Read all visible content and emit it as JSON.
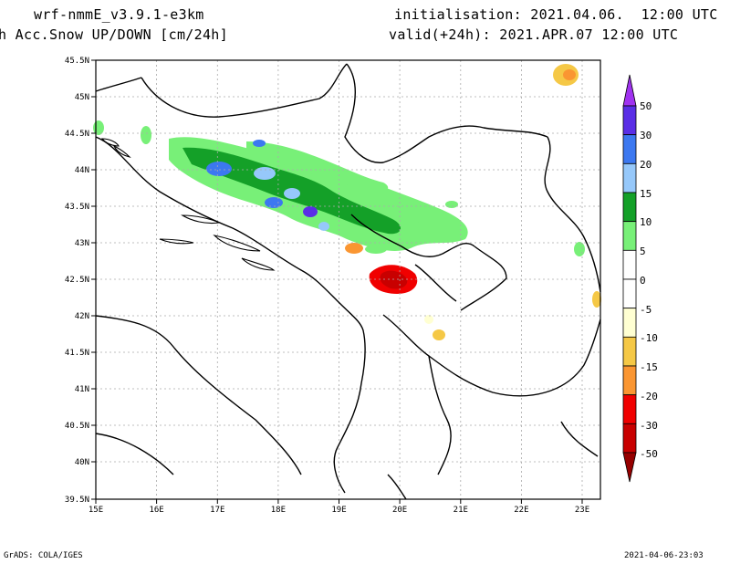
{
  "header": {
    "model": "wrf-nmmE_v3.9.1-e3km",
    "field": "h Acc.Snow UP/DOWN [cm/24h]",
    "init": "initialisation: 2021.04.06.  12:00 UTC",
    "valid": "valid(+24h): 2021.APR.07 12:00 UTC"
  },
  "map": {
    "lon_labels": [
      "15E",
      "16E",
      "17E",
      "18E",
      "19E",
      "20E",
      "21E",
      "22E",
      "23E"
    ],
    "lat_labels": [
      "45.5N",
      "45N",
      "44.5N",
      "44N",
      "43.5N",
      "43N",
      "42.5N",
      "42N",
      "41.5N",
      "41N",
      "40.5N",
      "40N",
      "39.5N"
    ],
    "lon_range": [
      15,
      23.3
    ],
    "lat_range": [
      39.5,
      45.5
    ]
  },
  "colorbar": {
    "labels": [
      "50",
      "30",
      "20",
      "15",
      "10",
      "5",
      "0",
      "-5",
      "-10",
      "-15",
      "-20",
      "-30",
      "-50"
    ],
    "colors": [
      "#5a2ee6",
      "#3c78f0",
      "#96c8fa",
      "#14a028",
      "#78f078",
      "#ffffff",
      "#ffffff",
      "#ffffd2",
      "#f5c846",
      "#fa9632",
      "#f00000",
      "#c80000"
    ],
    "top_cap": "#a032f0",
    "bottom_cap": "#960000"
  },
  "footer": {
    "left": "GrADS: COLA/IGES",
    "right": "2021-04-06-23:03"
  }
}
